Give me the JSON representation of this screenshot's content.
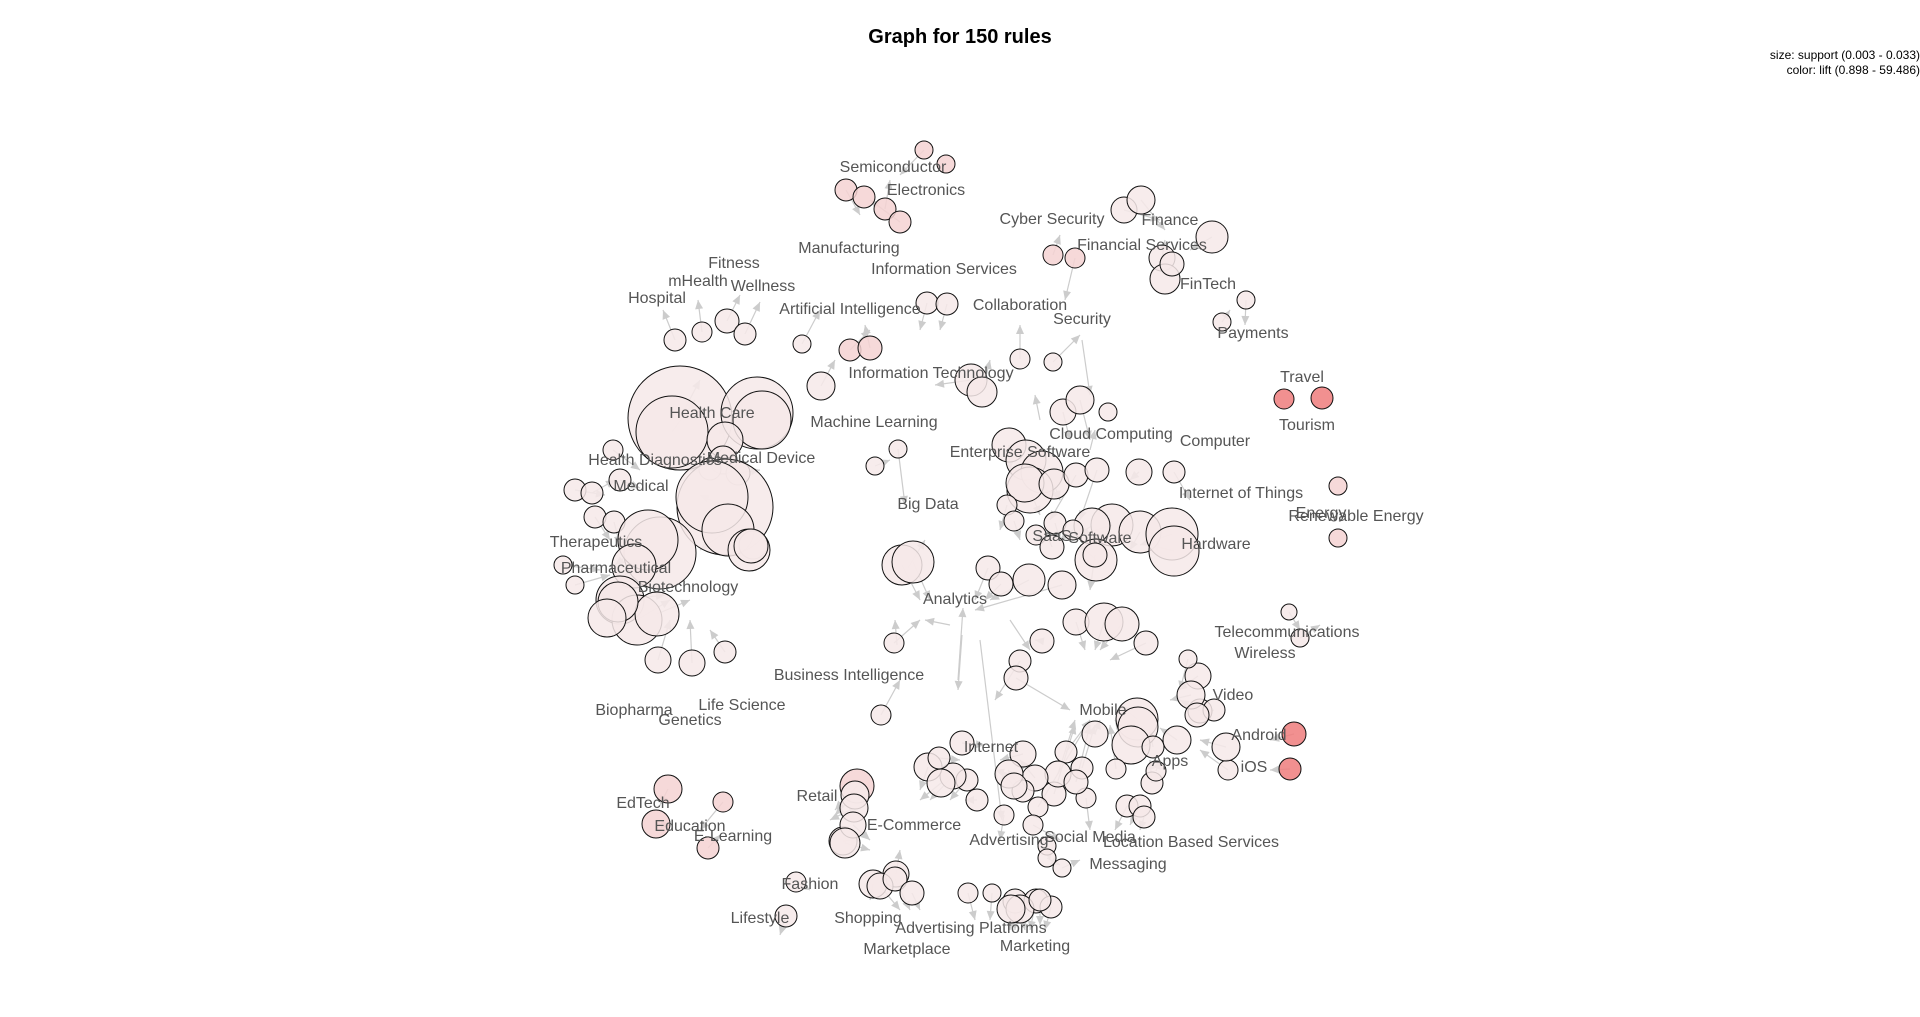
{
  "title": "Graph for 150 rules",
  "legend": {
    "size_text": "size: support (0.003 - 0.033)",
    "color_text": "color: lift (0.898 - 59.486)"
  },
  "colors": {
    "node_low": "#f6e9e9",
    "node_mid": "#f5d2d2",
    "node_high": "#ee7d7d",
    "edge": "#cccccc",
    "label": "#555555"
  },
  "labels": [
    "Semiconductor",
    "Electronics",
    "Manufacturing",
    "Information Services",
    "Cyber Security",
    "Finance",
    "Financial Services",
    "FinTech",
    "Payments",
    "Collaboration",
    "Security",
    "Fitness",
    "mHealth",
    "Wellness",
    "Hospital",
    "Artificial Intelligence",
    "Information Technology",
    "Machine Learning",
    "Health Care",
    "Health Diagnostics",
    "Medical Device",
    "Medical",
    "Therapeutics",
    "Pharmaceutical",
    "Biotechnology",
    "Biopharma",
    "Genetics",
    "Life Science",
    "Cloud Computing",
    "Computer",
    "Enterprise Software",
    "Internet of Things",
    "Energy",
    "Renewable Energy",
    "Travel",
    "Tourism",
    "Big Data",
    "SaaS",
    "Software",
    "Hardware",
    "Analytics",
    "Business Intelligence",
    "Telecommunications",
    "Wireless",
    "Video",
    "Mobile",
    "Android",
    "iOS",
    "Apps",
    "Internet",
    "Retail",
    "E-Commerce",
    "EdTech",
    "Education",
    "E-Learning",
    "Advertising",
    "Social Media",
    "Location Based Services",
    "Messaging",
    "Fashion",
    "Lifestyle",
    "Shopping",
    "Advertising Platforms",
    "Marketplace",
    "Marketing"
  ]
}
